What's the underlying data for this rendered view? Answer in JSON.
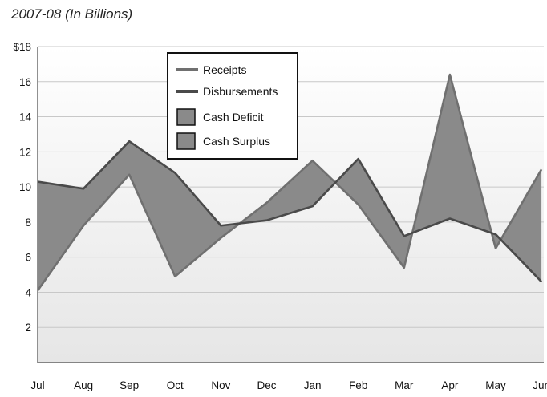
{
  "chart_data": {
    "type": "area",
    "title": "2007-08 (In Billions)",
    "xlabel": "",
    "ylabel": "",
    "categories": [
      "Jul",
      "Aug",
      "Sep",
      "Oct",
      "Nov",
      "Dec",
      "Jan",
      "Feb",
      "Mar",
      "Apr",
      "May",
      "Jun"
    ],
    "series": [
      {
        "name": "Receipts",
        "values": [
          4.1,
          7.8,
          10.7,
          4.9,
          7.1,
          9.1,
          11.5,
          9.0,
          5.4,
          16.4,
          6.5,
          11.0
        ]
      },
      {
        "name": "Disbursements",
        "values": [
          10.3,
          9.9,
          12.6,
          10.8,
          7.8,
          8.1,
          8.9,
          11.6,
          7.2,
          8.2,
          7.3,
          4.6
        ]
      }
    ],
    "fill_legend": [
      "Cash Deficit",
      "Cash Surplus"
    ],
    "ylim": [
      0,
      18
    ],
    "yticks": [
      2,
      4,
      6,
      8,
      10,
      12,
      14,
      16
    ],
    "ytick_top_label": "$18",
    "grid": true,
    "legend_position": "top-center",
    "colors": {
      "fill": "#8a8a8a",
      "receipts_line": "#707070",
      "disbursements_line": "#4a4a4a",
      "grid": "#c8c8c8",
      "plot_bg_top": "#ffffff",
      "plot_bg_bottom": "#e6e6e6"
    }
  }
}
